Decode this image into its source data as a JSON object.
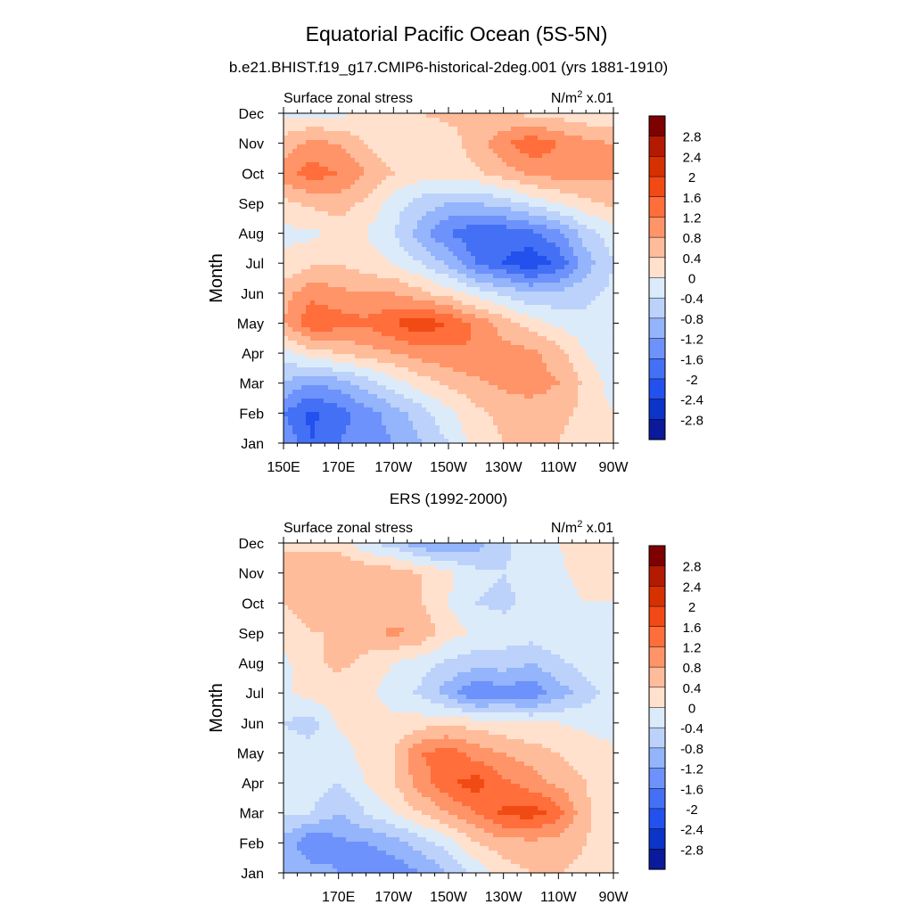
{
  "figure": {
    "title": "Equatorial Pacific Ocean (5S-5N)",
    "subtitle": "b.e21.BHIST.f19_g17.CMIP6-historical-2deg.001 (yrs 1881-1910)"
  },
  "chart_data": [
    {
      "type": "heatmap",
      "kind": "filled-contour",
      "title": "",
      "left_label": "Surface zonal stress",
      "units_label": "N/m",
      "units_sup": "2",
      "units_suffix": " x.01",
      "ylabel": "Month",
      "xlabel": "",
      "x_ticks": [
        {
          "lon": 150,
          "label": "150E"
        },
        {
          "lon": 170,
          "label": "170E"
        },
        {
          "lon": 190,
          "label": "170W"
        },
        {
          "lon": 210,
          "label": "150W"
        },
        {
          "lon": 230,
          "label": "130W"
        },
        {
          "lon": 250,
          "label": "110W"
        },
        {
          "lon": 270,
          "label": "90W"
        }
      ],
      "xlim": [
        150,
        270
      ],
      "months": [
        "Jan",
        "Feb",
        "Mar",
        "Apr",
        "May",
        "Jun",
        "Jul",
        "Aug",
        "Sep",
        "Oct",
        "Nov",
        "Dec"
      ],
      "ylim": [
        0,
        11
      ],
      "field": {
        "lon": [
          150,
          160,
          170,
          180,
          190,
          200,
          210,
          220,
          230,
          240,
          250,
          260,
          270
        ],
        "values": [
          [
            -1.2,
            -2.0,
            -1.6,
            -1.4,
            -1.2,
            -0.8,
            -0.4,
            0.2,
            0.4,
            0.4,
            0.4,
            0.2,
            0.0
          ],
          [
            -1.6,
            -2.1,
            -1.8,
            -1.4,
            -1.0,
            -0.6,
            -0.1,
            0.3,
            0.5,
            0.6,
            0.5,
            0.3,
            0.0
          ],
          [
            -0.8,
            -1.2,
            -1.0,
            -0.6,
            -0.2,
            0.2,
            0.5,
            0.7,
            0.9,
            1.0,
            0.8,
            0.3,
            -0.2
          ],
          [
            -0.2,
            0.2,
            0.4,
            0.6,
            0.8,
            1.0,
            1.1,
            1.2,
            1.0,
            0.9,
            0.6,
            0.0,
            -0.3
          ],
          [
            0.8,
            1.5,
            1.4,
            1.3,
            1.6,
            1.9,
            1.6,
            1.1,
            0.6,
            0.2,
            -0.1,
            -0.3,
            -0.3
          ],
          [
            0.6,
            1.1,
            0.9,
            0.8,
            0.8,
            0.5,
            0.2,
            -0.2,
            -0.5,
            -0.8,
            -0.7,
            -0.5,
            -0.3
          ],
          [
            0.1,
            0.3,
            0.4,
            0.2,
            0.0,
            -0.4,
            -0.9,
            -1.6,
            -2.0,
            -2.3,
            -1.9,
            -1.0,
            -0.4
          ],
          [
            -0.1,
            -0.1,
            0.2,
            0.0,
            -0.4,
            -1.0,
            -1.6,
            -1.9,
            -1.9,
            -1.7,
            -1.3,
            -0.6,
            -0.2
          ],
          [
            0.3,
            0.5,
            0.6,
            0.3,
            -0.2,
            -0.6,
            -0.8,
            -0.8,
            -0.6,
            -0.3,
            0.0,
            0.3,
            0.5
          ],
          [
            1.0,
            1.4,
            1.2,
            0.8,
            0.4,
            0.2,
            0.2,
            0.3,
            0.6,
            0.9,
            1.0,
            0.9,
            0.9
          ],
          [
            0.6,
            0.9,
            0.8,
            0.4,
            0.1,
            0.1,
            0.2,
            0.6,
            1.1,
            1.5,
            1.2,
            0.9,
            0.8
          ],
          [
            -0.1,
            -0.1,
            -0.1,
            0.1,
            0.2,
            0.4,
            0.5,
            0.5,
            0.4,
            0.3,
            0.2,
            0.1,
            0.0
          ]
        ]
      }
    },
    {
      "type": "heatmap",
      "kind": "filled-contour",
      "title": "ERS (1992-2000)",
      "left_label": "Surface zonal stress",
      "units_label": "N/m",
      "units_sup": "2",
      "units_suffix": " x.01",
      "ylabel": "Month",
      "xlabel": "",
      "x_ticks": [
        {
          "lon": 170,
          "label": "170E"
        },
        {
          "lon": 190,
          "label": "170W"
        },
        {
          "lon": 210,
          "label": "150W"
        },
        {
          "lon": 230,
          "label": "130W"
        },
        {
          "lon": 250,
          "label": "110W"
        },
        {
          "lon": 270,
          "label": "90W"
        }
      ],
      "xlim": [
        150,
        270
      ],
      "months": [
        "Jan",
        "Feb",
        "Mar",
        "Apr",
        "May",
        "Jun",
        "Jul",
        "Aug",
        "Sep",
        "Oct",
        "Nov",
        "Dec"
      ],
      "ylim": [
        0,
        11
      ],
      "field": {
        "lon": [
          150,
          160,
          170,
          180,
          190,
          200,
          210,
          220,
          230,
          240,
          250,
          260,
          270
        ],
        "values": [
          [
            -0.8,
            -1.0,
            -1.2,
            -1.6,
            -1.5,
            -1.2,
            -0.8,
            -0.3,
            0.2,
            0.4,
            0.4,
            0.3,
            0.1
          ],
          [
            -0.9,
            -1.6,
            -1.3,
            -1.2,
            -1.0,
            -0.6,
            -0.2,
            0.4,
            0.6,
            0.7,
            0.6,
            0.4,
            0.2
          ],
          [
            -0.4,
            -0.4,
            -0.8,
            -0.4,
            0.0,
            0.4,
            0.8,
            1.2,
            1.7,
            1.8,
            1.4,
            0.5,
            0.0
          ],
          [
            -0.3,
            -0.2,
            -0.4,
            0.0,
            0.4,
            1.0,
            1.5,
            1.8,
            1.3,
            1.0,
            0.7,
            0.4,
            0.1
          ],
          [
            -0.2,
            -0.2,
            -0.3,
            0.2,
            0.4,
            1.2,
            1.4,
            1.0,
            0.8,
            0.6,
            0.4,
            0.2,
            0.1
          ],
          [
            -0.4,
            -0.6,
            0.1,
            0.2,
            0.1,
            0.2,
            0.3,
            0.2,
            0.1,
            0.0,
            0.0,
            -0.1,
            -0.2
          ],
          [
            -0.1,
            0.2,
            0.2,
            0.1,
            -0.2,
            -0.5,
            -1.0,
            -1.6,
            -1.4,
            -1.5,
            -1.0,
            -0.6,
            -0.2
          ],
          [
            -0.1,
            0.3,
            0.5,
            0.3,
            0.0,
            -0.2,
            -0.5,
            -0.6,
            -0.6,
            -0.8,
            -0.5,
            -0.2,
            -0.1
          ],
          [
            0.2,
            0.4,
            0.4,
            0.6,
            0.9,
            0.7,
            0.2,
            -0.1,
            -0.2,
            -0.2,
            -0.1,
            0.0,
            0.0
          ],
          [
            0.4,
            0.6,
            0.6,
            0.5,
            0.5,
            0.4,
            0.0,
            -0.4,
            -0.5,
            -0.3,
            -0.2,
            0.0,
            0.0
          ],
          [
            0.4,
            0.6,
            0.8,
            0.7,
            0.6,
            0.4,
            0.1,
            -0.3,
            -0.4,
            -0.2,
            -0.1,
            0.2,
            0.2
          ],
          [
            0.4,
            0.3,
            0.2,
            -0.3,
            -0.6,
            -1.1,
            -1.2,
            -1.0,
            -0.5,
            -0.2,
            0.0,
            0.2,
            0.4
          ]
        ]
      }
    }
  ],
  "colorbar": {
    "labels": [
      "2.8",
      "2.4",
      "2",
      "1.6",
      "1.2",
      "0.8",
      "0.4",
      "0",
      "-0.4",
      "-0.8",
      "-1.2",
      "-1.6",
      "-2",
      "-2.4",
      "-2.8"
    ],
    "boundaries": [
      3.2,
      2.8,
      2.4,
      2.0,
      1.6,
      1.2,
      0.8,
      0.4,
      0.0,
      -0.4,
      -0.8,
      -1.2,
      -1.6,
      -2.0,
      -2.4,
      -2.8,
      -3.2
    ],
    "colors": [
      "#7f0000",
      "#b31a00",
      "#d63100",
      "#f24a14",
      "#ff6e3b",
      "#ff9468",
      "#ffbc9b",
      "#ffe1cd",
      "#dcebfa",
      "#bcd2fb",
      "#94b4fb",
      "#6e92fb",
      "#4470f5",
      "#2351ee",
      "#0d34c8",
      "#0b1a9a"
    ]
  }
}
